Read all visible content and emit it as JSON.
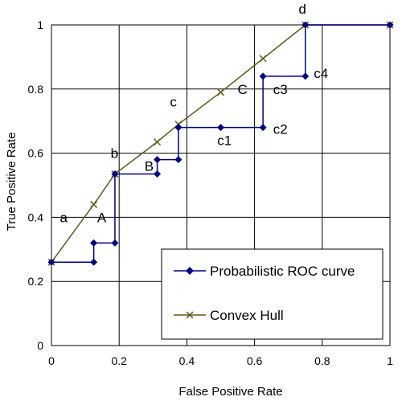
{
  "chart_data": {
    "type": "line",
    "title": "",
    "xlabel": "False Positive Rate",
    "ylabel": "True Positive Rate",
    "xlim": [
      0,
      1
    ],
    "ylim": [
      0,
      1
    ],
    "x_ticks": [
      "0",
      "0.2",
      "0.4",
      "0.6",
      "0.8",
      "1"
    ],
    "y_ticks": [
      "0",
      "0.2",
      "0.4",
      "0.6",
      "0.8",
      "1"
    ],
    "grid": true,
    "legend_position": "bottom-right",
    "series": [
      {
        "name": "Probabilistic ROC curve",
        "color": "#000080",
        "marker": "diamond",
        "points": [
          [
            0,
            0.26
          ],
          [
            0.125,
            0.26
          ],
          [
            0.125,
            0.32
          ],
          [
            0.1875,
            0.32
          ],
          [
            0.1875,
            0.535
          ],
          [
            0.3125,
            0.535
          ],
          [
            0.3125,
            0.58
          ],
          [
            0.375,
            0.58
          ],
          [
            0.375,
            0.68
          ],
          [
            0.5,
            0.68
          ],
          [
            0.625,
            0.68
          ],
          [
            0.625,
            0.84
          ],
          [
            0.75,
            0.84
          ],
          [
            0.75,
            1
          ],
          [
            1,
            1
          ]
        ]
      },
      {
        "name": "Convex Hull",
        "color": "#5a5a1e",
        "marker": "x",
        "points": [
          [
            0,
            0.26
          ],
          [
            0.125,
            0.44
          ],
          [
            0.1875,
            0.535
          ],
          [
            0.3125,
            0.635
          ],
          [
            0.375,
            0.69
          ],
          [
            0.5,
            0.79
          ],
          [
            0.625,
            0.895
          ],
          [
            0.75,
            1
          ],
          [
            1,
            1
          ]
        ]
      }
    ],
    "annotations": [
      {
        "text": "a",
        "x": 0.025,
        "y": 0.385
      },
      {
        "text": "A",
        "x": 0.135,
        "y": 0.385
      },
      {
        "text": "b",
        "x": 0.175,
        "y": 0.585
      },
      {
        "text": "B",
        "x": 0.275,
        "y": 0.545
      },
      {
        "text": "c",
        "x": 0.35,
        "y": 0.745
      },
      {
        "text": "c1",
        "x": 0.49,
        "y": 0.625
      },
      {
        "text": "c2",
        "x": 0.655,
        "y": 0.66
      },
      {
        "text": "C",
        "x": 0.55,
        "y": 0.785
      },
      {
        "text": "c3",
        "x": 0.655,
        "y": 0.785
      },
      {
        "text": "c4",
        "x": 0.775,
        "y": 0.835
      },
      {
        "text": "d",
        "x": 0.73,
        "y": 1.035
      }
    ]
  },
  "legend": {
    "roc_label": "Probabilistic ROC curve",
    "hull_label": "Convex Hull"
  }
}
